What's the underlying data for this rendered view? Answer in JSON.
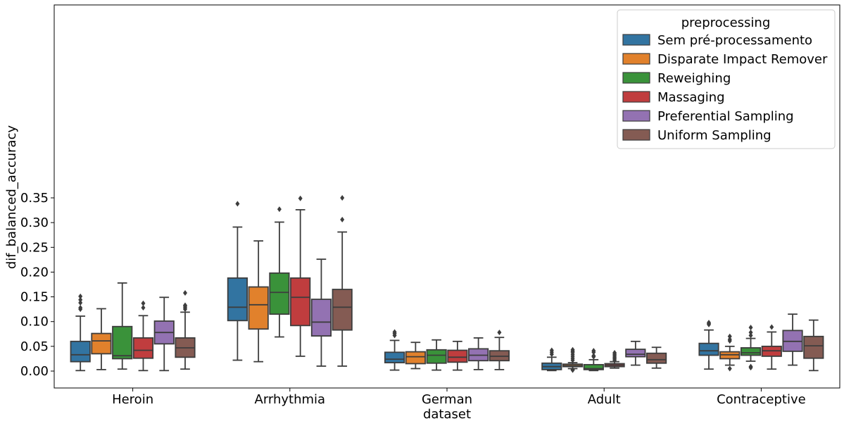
{
  "chart_data": {
    "type": "box",
    "xlabel": "dataset",
    "ylabel": "dif_balanced_accuracy",
    "ylim": [
      -0.017,
      0.365
    ],
    "yticks": [
      "0.00",
      "0.05",
      "0.10",
      "0.15",
      "0.20",
      "0.25",
      "0.30",
      "0.35"
    ],
    "grid": false,
    "categories": [
      "Heroin",
      "Arrhythmia",
      "German",
      "Adult",
      "Contraceptive"
    ],
    "legend": {
      "title": "preprocessing",
      "placement": "top-right"
    },
    "series": [
      {
        "name": "Sem pré-processamento",
        "color": "#3274a1",
        "boxes": [
          {
            "q1": 0.019,
            "median": 0.033,
            "q3": 0.06,
            "whisker_low": 0.001,
            "whisker_high": 0.111,
            "outliers": [
              0.125,
              0.128,
              0.138,
              0.144,
              0.151
            ]
          },
          {
            "q1": 0.102,
            "median": 0.129,
            "q3": 0.188,
            "whisker_low": 0.022,
            "whisker_high": 0.291,
            "outliers": [
              0.338
            ]
          },
          {
            "q1": 0.017,
            "median": 0.024,
            "q3": 0.038,
            "whisker_low": 0.002,
            "whisker_high": 0.062,
            "outliers": [
              0.072,
              0.076,
              0.079
            ]
          },
          {
            "q1": 0.003,
            "median": 0.009,
            "q3": 0.016,
            "whisker_low": 0.001,
            "whisker_high": 0.028,
            "outliers": [
              0.034,
              0.038,
              0.042
            ]
          },
          {
            "q1": 0.032,
            "median": 0.041,
            "q3": 0.056,
            "whisker_low": 0.004,
            "whisker_high": 0.083,
            "outliers": [
              0.094,
              0.096,
              0.098
            ]
          }
        ]
      },
      {
        "name": "Disparate Impact Remover",
        "color": "#e1812c",
        "boxes": [
          {
            "q1": 0.035,
            "median": 0.061,
            "q3": 0.076,
            "whisker_low": 0.003,
            "whisker_high": 0.126,
            "outliers": []
          },
          {
            "q1": 0.085,
            "median": 0.134,
            "q3": 0.17,
            "whisker_low": 0.019,
            "whisker_high": 0.263,
            "outliers": []
          },
          {
            "q1": 0.015,
            "median": 0.029,
            "q3": 0.039,
            "whisker_low": 0.005,
            "whisker_high": 0.058,
            "outliers": []
          },
          {
            "q1": 0.009,
            "median": 0.011,
            "q3": 0.014,
            "whisker_low": 0.005,
            "whisker_high": 0.017,
            "outliers": [
              0.002,
              0.003,
              0.022,
              0.026,
              0.03,
              0.034,
              0.038,
              0.04,
              0.043
            ]
          },
          {
            "q1": 0.025,
            "median": 0.033,
            "q3": 0.039,
            "whisker_low": 0.012,
            "whisker_high": 0.05,
            "outliers": [
              0.005,
              0.061,
              0.064,
              0.07
            ]
          }
        ]
      },
      {
        "name": "Reweighing",
        "color": "#3a923a",
        "boxes": [
          {
            "q1": 0.025,
            "median": 0.031,
            "q3": 0.09,
            "whisker_low": 0.004,
            "whisker_high": 0.178,
            "outliers": []
          },
          {
            "q1": 0.115,
            "median": 0.159,
            "q3": 0.198,
            "whisker_low": 0.069,
            "whisker_high": 0.301,
            "outliers": [
              0.327
            ]
          },
          {
            "q1": 0.016,
            "median": 0.032,
            "q3": 0.043,
            "whisker_low": 0.002,
            "whisker_high": 0.063,
            "outliers": []
          },
          {
            "q1": 0.003,
            "median": 0.005,
            "q3": 0.013,
            "whisker_low": 0.001,
            "whisker_high": 0.023,
            "outliers": [
              0.029,
              0.031,
              0.038,
              0.041
            ]
          },
          {
            "q1": 0.032,
            "median": 0.037,
            "q3": 0.047,
            "whisker_low": 0.02,
            "whisker_high": 0.066,
            "outliers": [
              0.007,
              0.009,
              0.072,
              0.078,
              0.088
            ]
          }
        ]
      },
      {
        "name": "Massaging",
        "color": "#c03d3e",
        "boxes": [
          {
            "q1": 0.026,
            "median": 0.042,
            "q3": 0.067,
            "whisker_low": 0.001,
            "whisker_high": 0.112,
            "outliers": [
              0.128,
              0.137
            ]
          },
          {
            "q1": 0.092,
            "median": 0.149,
            "q3": 0.188,
            "whisker_low": 0.03,
            "whisker_high": 0.326,
            "outliers": [
              0.349
            ]
          },
          {
            "q1": 0.018,
            "median": 0.028,
            "q3": 0.042,
            "whisker_low": 0.002,
            "whisker_high": 0.06,
            "outliers": []
          },
          {
            "q1": 0.009,
            "median": 0.012,
            "q3": 0.015,
            "whisker_low": 0.006,
            "whisker_high": 0.019,
            "outliers": [
              0.022,
              0.025,
              0.028,
              0.031,
              0.034,
              0.037
            ]
          },
          {
            "q1": 0.03,
            "median": 0.041,
            "q3": 0.05,
            "whisker_low": 0.004,
            "whisker_high": 0.079,
            "outliers": [
              0.089
            ]
          }
        ]
      },
      {
        "name": "Preferential Sampling",
        "color": "#9372b2",
        "boxes": [
          {
            "q1": 0.055,
            "median": 0.078,
            "q3": 0.101,
            "whisker_low": 0.001,
            "whisker_high": 0.149,
            "outliers": []
          },
          {
            "q1": 0.071,
            "median": 0.099,
            "q3": 0.145,
            "whisker_low": 0.01,
            "whisker_high": 0.226,
            "outliers": []
          },
          {
            "q1": 0.021,
            "median": 0.032,
            "q3": 0.045,
            "whisker_low": 0.003,
            "whisker_high": 0.067,
            "outliers": []
          },
          {
            "q1": 0.029,
            "median": 0.034,
            "q3": 0.044,
            "whisker_low": 0.012,
            "whisker_high": 0.06,
            "outliers": []
          },
          {
            "q1": 0.04,
            "median": 0.06,
            "q3": 0.082,
            "whisker_low": 0.012,
            "whisker_high": 0.115,
            "outliers": []
          }
        ]
      },
      {
        "name": "Uniform Sampling",
        "color": "#845b53",
        "boxes": [
          {
            "q1": 0.028,
            "median": 0.047,
            "q3": 0.067,
            "whisker_low": 0.004,
            "whisker_high": 0.119,
            "outliers": [
              0.125,
              0.128,
              0.131,
              0.133,
              0.158
            ]
          },
          {
            "q1": 0.083,
            "median": 0.129,
            "q3": 0.165,
            "whisker_low": 0.01,
            "whisker_high": 0.281,
            "outliers": [
              0.306,
              0.35
            ]
          },
          {
            "q1": 0.021,
            "median": 0.03,
            "q3": 0.041,
            "whisker_low": 0.003,
            "whisker_high": 0.068,
            "outliers": [
              0.078
            ]
          },
          {
            "q1": 0.016,
            "median": 0.023,
            "q3": 0.036,
            "whisker_low": 0.006,
            "whisker_high": 0.048,
            "outliers": []
          },
          {
            "q1": 0.026,
            "median": 0.051,
            "q3": 0.07,
            "whisker_low": 0.001,
            "whisker_high": 0.103,
            "outliers": []
          }
        ]
      }
    ]
  }
}
